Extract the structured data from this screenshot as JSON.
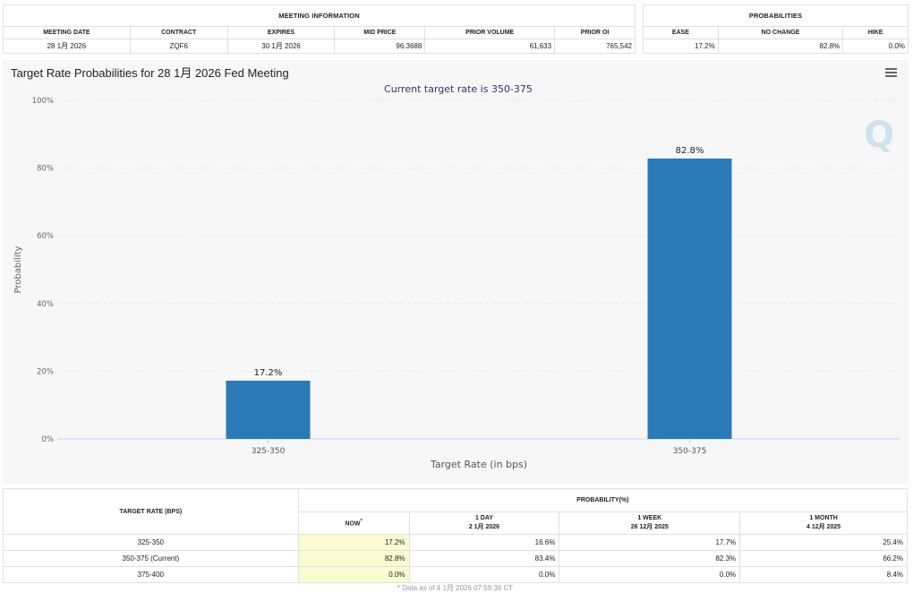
{
  "meeting_info": {
    "group_title": "MEETING INFORMATION",
    "columns": [
      "MEETING DATE",
      "CONTRACT",
      "EXPIRES",
      "MID PRICE",
      "PRIOR VOLUME",
      "PRIOR OI"
    ],
    "row": [
      "28 1月 2026",
      "ZQF6",
      "30 1月 2026",
      "96.3688",
      "61,633",
      "765,542"
    ]
  },
  "probabilities": {
    "group_title": "PROBABILITIES",
    "columns": [
      "EASE",
      "NO CHANGE",
      "HIKE"
    ],
    "row": [
      "17.2%",
      "82.8%",
      "0.0%"
    ]
  },
  "chart_title": "Target Rate Probabilities for 28 1月 2026 Fed Meeting",
  "chart_data": {
    "type": "bar",
    "subtitle": "Current target rate is 350-375",
    "categories": [
      "325-350",
      "350-375"
    ],
    "values": [
      17.2,
      82.8
    ],
    "data_labels": [
      "17.2%",
      "82.8%"
    ],
    "xlabel": "Target Rate (in bps)",
    "ylabel": "Probability",
    "ylim": [
      0,
      100
    ],
    "yticks": [
      0,
      20,
      40,
      60,
      80,
      100
    ],
    "ytick_labels": [
      "0%",
      "20%",
      "40%",
      "60%",
      "80%",
      "100%"
    ],
    "grid": true,
    "bar_color": "#2a7ab8"
  },
  "history": {
    "rate_header": "TARGET RATE (BPS)",
    "group_title": "PROBABILITY(%)",
    "columns": [
      {
        "label": "NOW",
        "sub": "",
        "mark": "*"
      },
      {
        "label": "1 DAY",
        "sub": "2 1月 2026"
      },
      {
        "label": "1 WEEK",
        "sub": "26 12月 2025"
      },
      {
        "label": "1 MONTH",
        "sub": "4 12月 2025"
      }
    ],
    "rows": [
      {
        "rate": "325-350",
        "values": [
          "17.2%",
          "16.6%",
          "17.7%",
          "25.4%"
        ]
      },
      {
        "rate": "350-375 (Current)",
        "values": [
          "82.8%",
          "83.4%",
          "82.3%",
          "66.2%"
        ]
      },
      {
        "rate": "375-400",
        "values": [
          "0.0%",
          "0.0%",
          "0.0%",
          "8.4%"
        ]
      }
    ],
    "footnote": "* Data as of 4 1月 2026 07:59:38 CT"
  },
  "colors": {
    "now_highlight": "#fbfbd2",
    "chart_bg": "#f7f7f7"
  }
}
